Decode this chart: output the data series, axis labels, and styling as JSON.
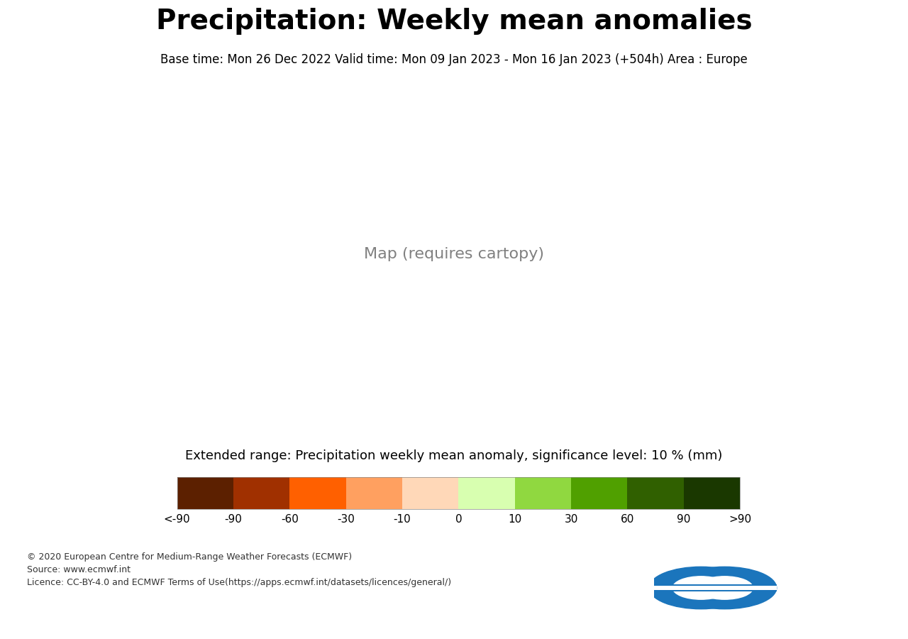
{
  "title": "Precipitation: Weekly mean anomalies",
  "subtitle": "Base time: Mon 26 Dec 2022 Valid time: Mon 09 Jan 2023 - Mon 16 Jan 2023 (+504h) Area : Europe",
  "colorbar_title": "Extended range: Precipitation weekly mean anomaly, significance level: 10 % (mm)",
  "colorbar_labels": [
    "<-90",
    "-90",
    "-60",
    "-30",
    "-10",
    "0",
    "10",
    "30",
    "60",
    "90",
    ">90"
  ],
  "colorbar_colors": [
    "#5C2000",
    "#A03000",
    "#FF6000",
    "#FFA060",
    "#FFD8B8",
    "#D8FFB0",
    "#90D840",
    "#50A000",
    "#306000",
    "#1A3800"
  ],
  "footer_lines": [
    "© 2020 European Centre for Medium-Range Weather Forecasts (ECMWF)",
    "Source: www.ecmwf.int",
    "Licence: CC-BY-4.0 and ECMWF Terms of Use(https://apps.ecmwf.int/datasets/licences/general/)"
  ],
  "bg_color": "#FFFFFF",
  "title_fontsize": 28,
  "subtitle_fontsize": 12,
  "colorbar_label_fontsize": 11,
  "colorbar_title_fontsize": 13,
  "footer_fontsize": 9,
  "ecmwf_logo_color": "#1B75BC",
  "map_lon_min": -65,
  "map_lon_max": 80,
  "map_lat_min": 20,
  "map_lat_max": 82,
  "central_longitude": 10,
  "orange_light": "#F5C99A",
  "orange_dark": "#E08840",
  "green_light": "#BDED8C",
  "green_dark": "#6BB83A",
  "green_darker": "#4A8020"
}
